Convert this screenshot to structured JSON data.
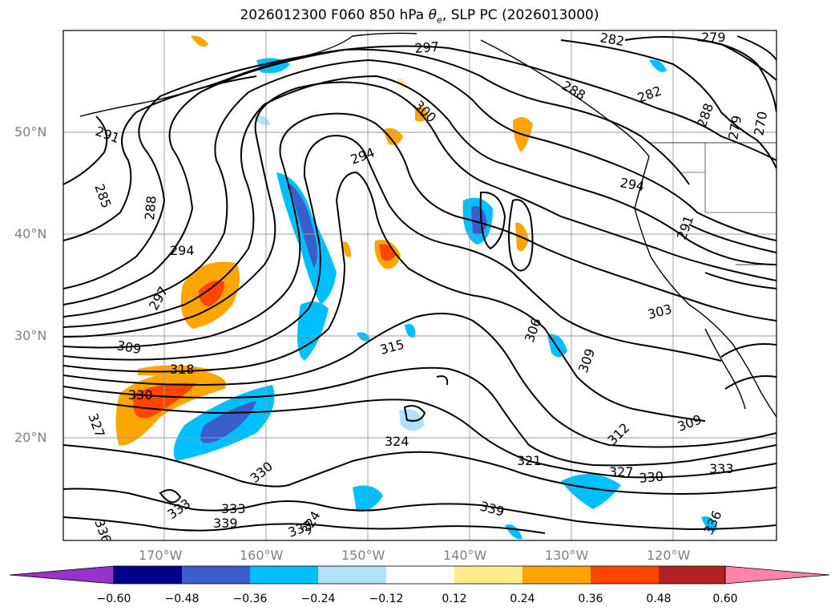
{
  "title": {
    "prefix": "2026012300 F060 850 hPa ",
    "var_base": "θ",
    "var_sub": "e",
    "suffix": ", SLP PC (2026013000)"
  },
  "axes": {
    "lat_labels": [
      "50°N",
      "40°N",
      "30°N",
      "20°N"
    ],
    "lon_labels": [
      "170°W",
      "160°W",
      "150°W",
      "140°W",
      "130°W",
      "120°W"
    ]
  },
  "colorbar": {
    "ticks": [
      "−0.60",
      "−0.48",
      "−0.36",
      "−0.24",
      "−0.12",
      "0.12",
      "0.24",
      "0.36",
      "0.48",
      "0.60"
    ],
    "colors": [
      "#9932cc",
      "#00008b",
      "#3a5fcd",
      "#00bfff",
      "#b0e2ff",
      "#ffffff",
      "#ffec8b",
      "#ffa500",
      "#ff4500",
      "#b22222",
      "#ff82ab"
    ]
  },
  "contour_labels": [
    "291",
    "285",
    "288",
    "294",
    "297",
    "309",
    "318",
    "330",
    "327",
    "294",
    "297",
    "300",
    "315",
    "324",
    "330",
    "333",
    "333",
    "339",
    "336",
    "333",
    "324",
    "282",
    "279",
    "288",
    "282",
    "294",
    "291",
    "303",
    "306",
    "309",
    "312",
    "321",
    "327",
    "330",
    "333",
    "309",
    "339",
    "336",
    "288",
    "279",
    "270"
  ]
}
